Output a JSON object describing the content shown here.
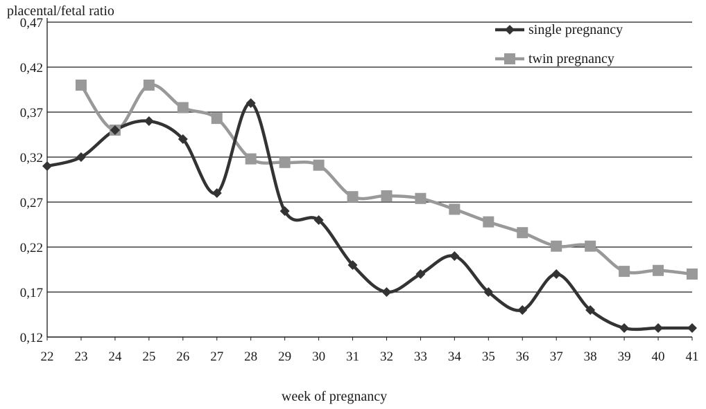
{
  "chart_data": {
    "type": "line",
    "title": "",
    "xlabel": "week of pregnancy",
    "ylabel": "placental/fetal ratio",
    "x": [
      "22",
      "23",
      "24",
      "25",
      "26",
      "27",
      "28",
      "29",
      "30",
      "31",
      "32",
      "33",
      "34",
      "35",
      "36",
      "37",
      "38",
      "39",
      "40",
      "41"
    ],
    "y_ticks": [
      "0,12",
      "0,17",
      "0,22",
      "0,27",
      "0,32",
      "0,37",
      "0,42",
      "0,47"
    ],
    "ylim": [
      0.12,
      0.47
    ],
    "grid": true,
    "legend_position": "top-right",
    "series": [
      {
        "name": "single pregnancy",
        "color": "#333333",
        "marker": "diamond",
        "values": [
          0.31,
          0.32,
          0.35,
          0.36,
          0.34,
          0.28,
          0.38,
          0.26,
          0.25,
          0.2,
          0.17,
          0.19,
          0.21,
          0.17,
          0.15,
          0.19,
          0.15,
          0.13,
          0.13,
          0.13
        ]
      },
      {
        "name": "twin pregnancy",
        "color": "#999999",
        "marker": "square",
        "values": [
          null,
          0.4,
          0.35,
          0.4,
          0.375,
          0.363,
          0.318,
          0.314,
          0.311,
          0.276,
          0.277,
          0.274,
          0.262,
          0.248,
          0.236,
          0.221,
          0.221,
          0.193,
          0.194,
          0.19
        ]
      }
    ]
  }
}
